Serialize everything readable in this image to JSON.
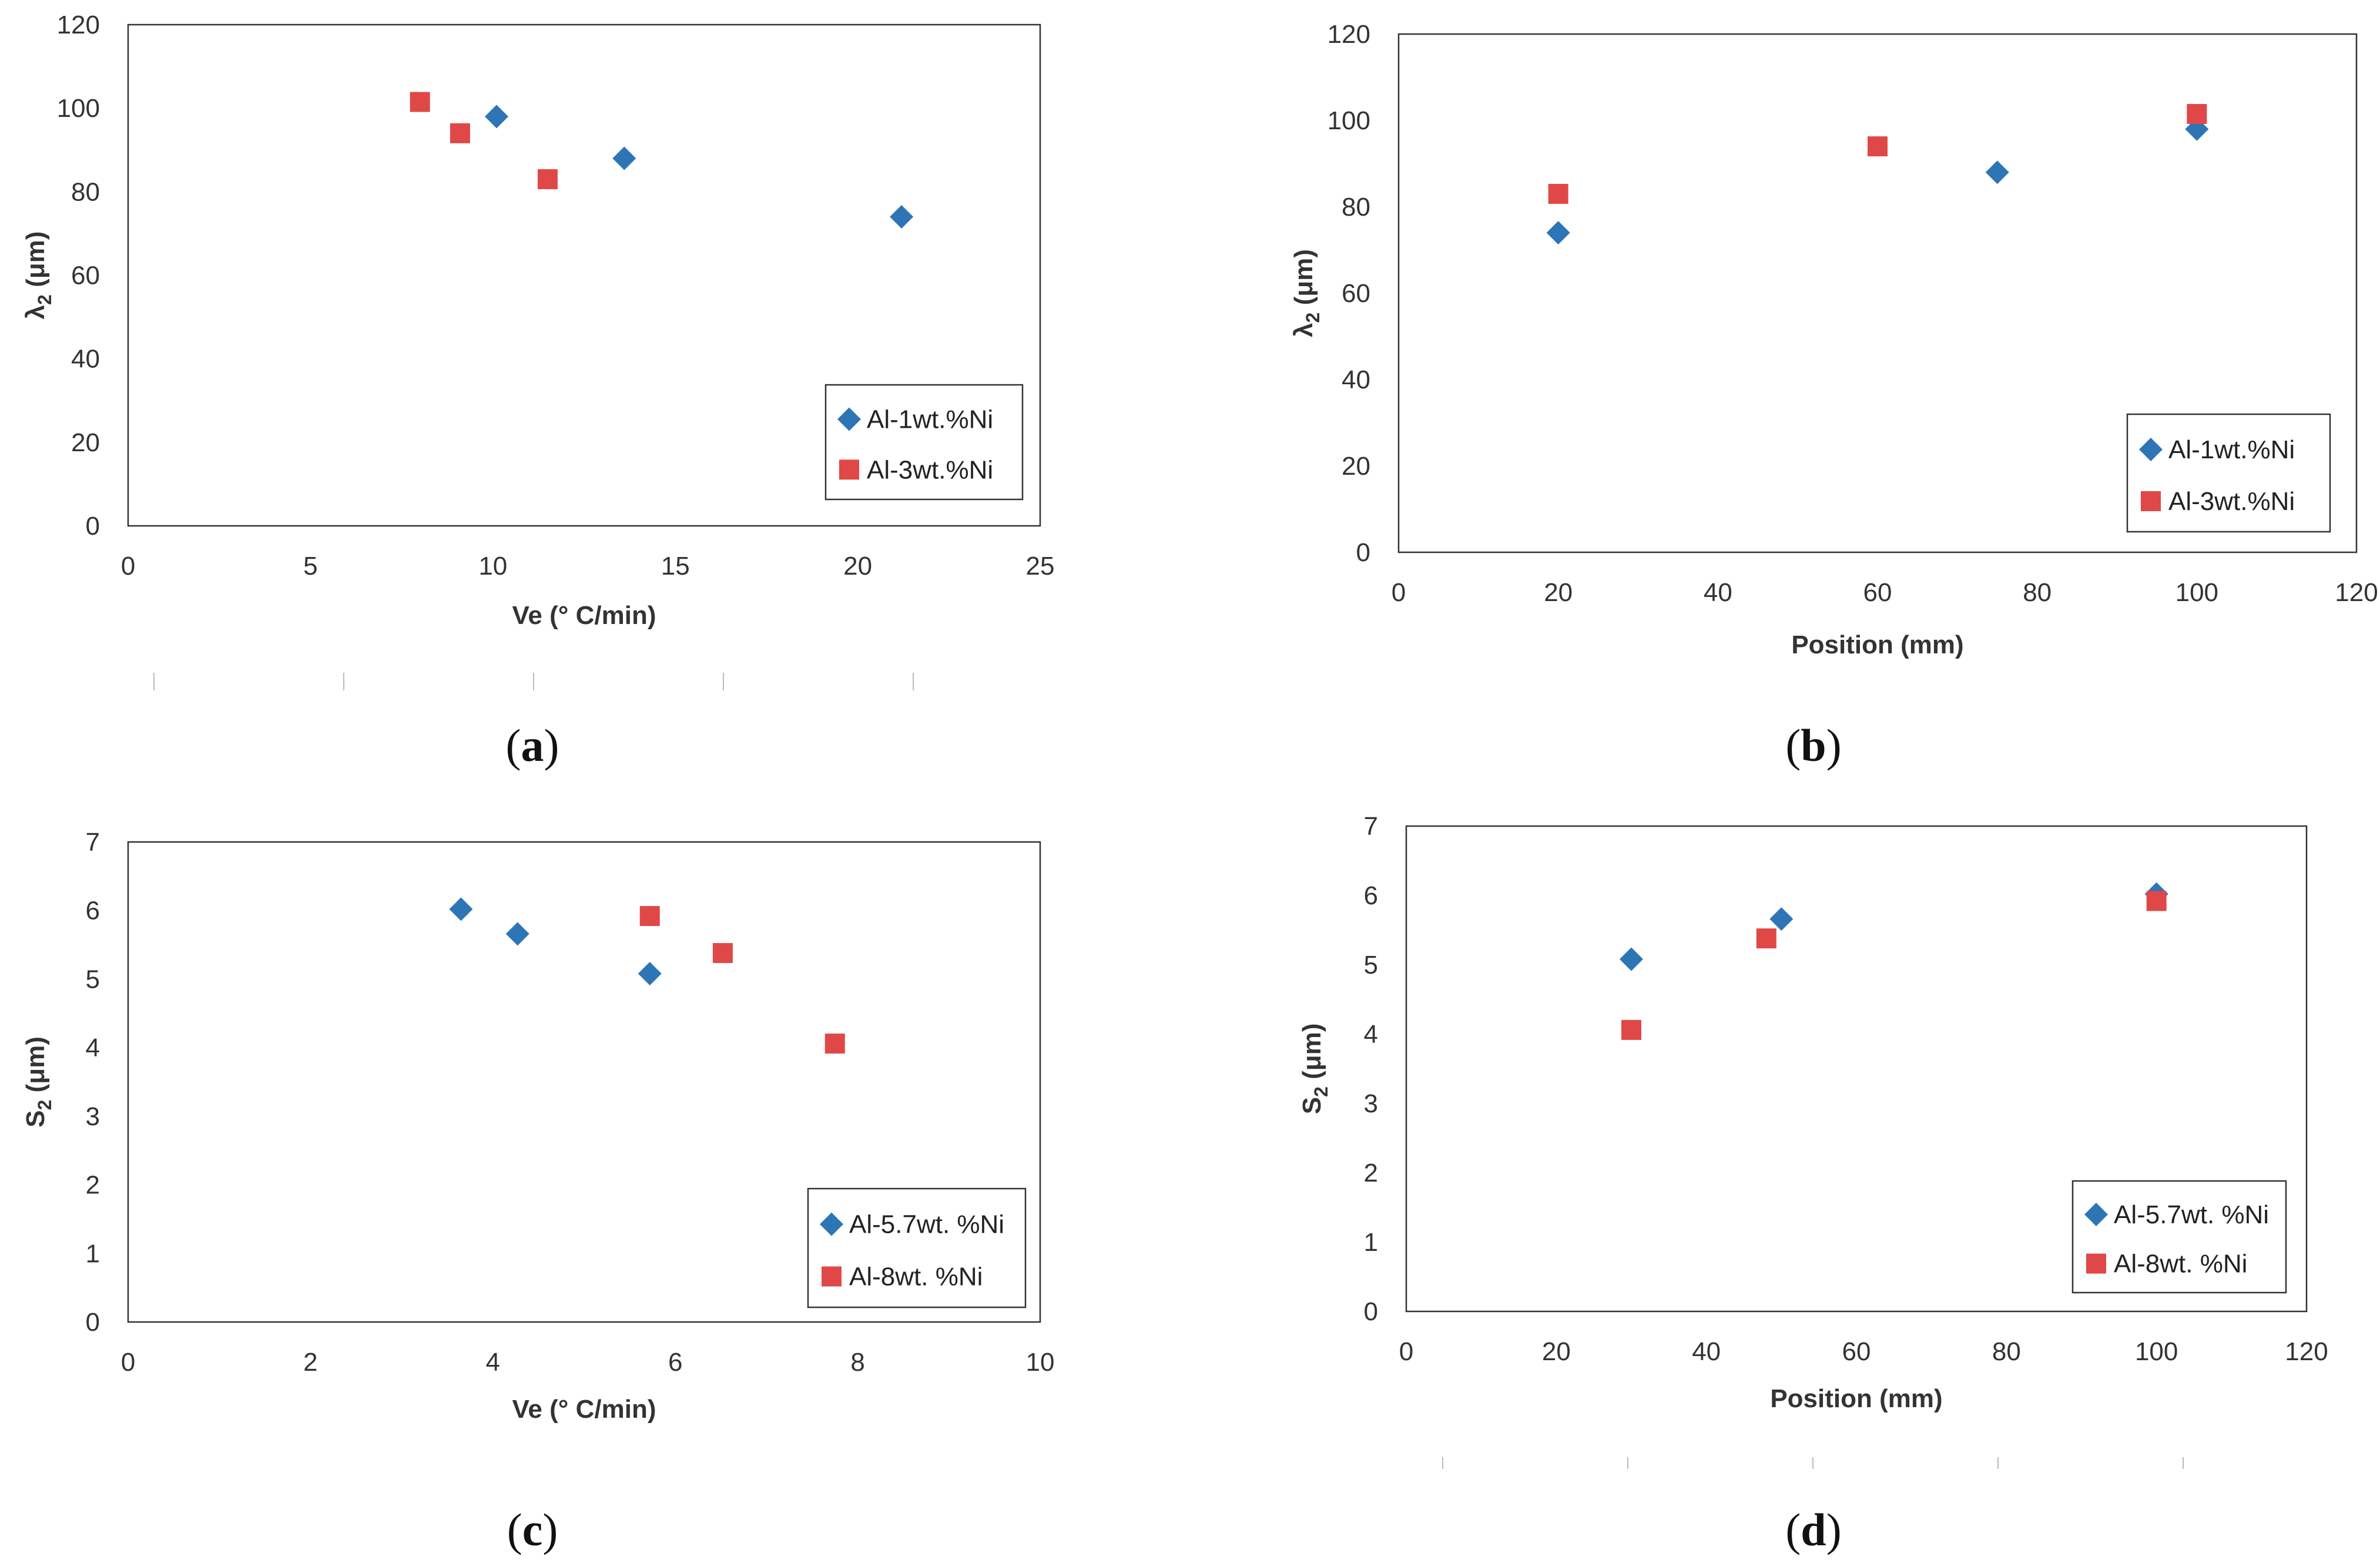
{
  "colors": {
    "series_1": "#2e75b6",
    "series_2": "#e04848",
    "axis": "#333333",
    "grid": "none"
  },
  "chart_data": [
    {
      "panel": "a",
      "type": "scatter",
      "caption": "a",
      "xlabel": "Ve (° C/min)",
      "ylabel": "λ",
      "ylabel_sub": "2",
      "ylabel_unit": " (μm)",
      "xlim": [
        0,
        25
      ],
      "ylim": [
        0,
        120
      ],
      "xticks": [
        0,
        5,
        10,
        15,
        20,
        25
      ],
      "yticks": [
        0,
        20,
        40,
        60,
        80,
        100,
        120
      ],
      "grid": false,
      "legend_position": "bottom-right",
      "series": [
        {
          "name": "Al-1wt.%Ni",
          "marker": "diamond",
          "points": [
            [
              10.1,
              98
            ],
            [
              13.6,
              88
            ],
            [
              21.2,
              74
            ]
          ]
        },
        {
          "name": "Al-3wt.%Ni",
          "marker": "square",
          "points": [
            [
              8.0,
              101.5
            ],
            [
              9.1,
              94
            ],
            [
              11.5,
              83
            ]
          ]
        }
      ]
    },
    {
      "panel": "b",
      "type": "scatter",
      "caption": "b",
      "xlabel": "Position (mm)",
      "ylabel": "λ",
      "ylabel_sub": "2",
      "ylabel_unit": " (μm)",
      "xlim": [
        0,
        120
      ],
      "ylim": [
        0,
        120
      ],
      "xticks": [
        0,
        20,
        40,
        60,
        80,
        100,
        120
      ],
      "yticks": [
        0,
        20,
        40,
        60,
        80,
        100,
        120
      ],
      "grid": false,
      "legend_position": "bottom-right",
      "series": [
        {
          "name": "Al-1wt.%Ni",
          "marker": "diamond",
          "points": [
            [
              20,
              74
            ],
            [
              75,
              88
            ],
            [
              100,
              98
            ]
          ]
        },
        {
          "name": "Al-3wt.%Ni",
          "marker": "square",
          "points": [
            [
              20,
              83
            ],
            [
              60,
              94
            ],
            [
              100,
              101.5
            ]
          ]
        }
      ]
    },
    {
      "panel": "c",
      "type": "scatter",
      "caption": "c",
      "xlabel": "Ve  (° C/min)",
      "ylabel": "S",
      "ylabel_sub": "2",
      "ylabel_unit": " (μm)",
      "xlim": [
        0,
        10
      ],
      "ylim": [
        0,
        7
      ],
      "xticks": [
        0,
        2,
        4,
        6,
        8,
        10
      ],
      "yticks": [
        0,
        1,
        2,
        3,
        4,
        5,
        6,
        7
      ],
      "grid": false,
      "legend_position": "bottom-right",
      "series": [
        {
          "name": "Al-5.7wt. %Ni",
          "marker": "diamond",
          "points": [
            [
              3.65,
              6.02
            ],
            [
              4.27,
              5.66
            ],
            [
              5.72,
              5.08
            ]
          ]
        },
        {
          "name": "Al-8wt. %Ni",
          "marker": "square",
          "points": [
            [
              5.72,
              5.92
            ],
            [
              6.52,
              5.38
            ],
            [
              7.75,
              4.06
            ]
          ]
        }
      ]
    },
    {
      "panel": "d",
      "type": "scatter",
      "caption": "d",
      "xlabel": "Position (mm)",
      "ylabel": "S",
      "ylabel_sub": "2",
      "ylabel_unit": " (μm)",
      "xlim": [
        0,
        120
      ],
      "ylim": [
        0,
        7
      ],
      "xticks": [
        0,
        20,
        40,
        60,
        80,
        100,
        120
      ],
      "yticks": [
        0,
        1,
        2,
        3,
        4,
        5,
        6,
        7
      ],
      "grid": false,
      "legend_position": "bottom-right",
      "series": [
        {
          "name": "Al-5.7wt. %Ni",
          "marker": "diamond",
          "points": [
            [
              30,
              5.08
            ],
            [
              50,
              5.66
            ],
            [
              100,
              6.02
            ]
          ]
        },
        {
          "name": "Al-8wt. %Ni",
          "marker": "square",
          "points": [
            [
              30,
              4.06
            ],
            [
              48,
              5.38
            ],
            [
              100,
              5.92
            ]
          ]
        }
      ]
    }
  ]
}
